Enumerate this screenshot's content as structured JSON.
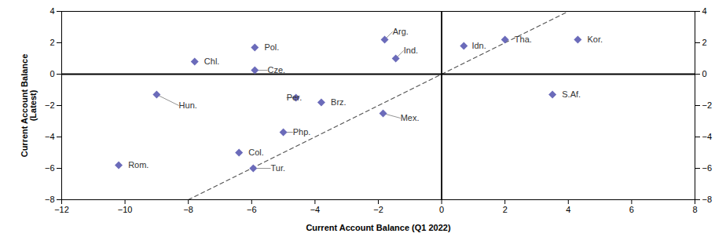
{
  "chart_data": {
    "type": "scatter",
    "xlabel": "Current Account Balance (Q1 2022)",
    "ylabel": "Current Account Balance\n(Latest)",
    "points": [
      {
        "label": "Rom.",
        "x": -10.2,
        "y": -5.8,
        "tx": -9.9,
        "ty": -5.8,
        "arrow": false
      },
      {
        "label": "Hun.",
        "x": -9.0,
        "y": -1.3,
        "tx": -8.3,
        "ty": -2.0,
        "arrow": true
      },
      {
        "label": "Chl.",
        "x": -7.8,
        "y": 0.8,
        "tx": -7.5,
        "ty": 0.8,
        "arrow": false
      },
      {
        "label": "Pol.",
        "x": -5.9,
        "y": 1.7,
        "tx": -5.6,
        "ty": 1.7,
        "arrow": false
      },
      {
        "label": "Cze.",
        "x": -5.9,
        "y": 0.25,
        "tx": -5.5,
        "ty": 0.25,
        "arrow": true
      },
      {
        "label": "Col.",
        "x": -6.4,
        "y": -5.0,
        "tx": -6.1,
        "ty": -5.0,
        "arrow": false
      },
      {
        "label": "Tur.",
        "x": -5.95,
        "y": -6.0,
        "tx": -5.4,
        "ty": -6.0,
        "arrow": true
      },
      {
        "label": "Php.",
        "x": -5.0,
        "y": -3.7,
        "tx": -4.7,
        "ty": -3.7,
        "arrow": true
      },
      {
        "label": "Per.",
        "x": -4.6,
        "y": -1.5,
        "tx": -4.9,
        "ty": -1.5,
        "arrow": true
      },
      {
        "label": "Brz.",
        "x": -3.8,
        "y": -1.8,
        "tx": -3.5,
        "ty": -1.8,
        "arrow": false
      },
      {
        "label": "Arg.",
        "x": -1.8,
        "y": 2.2,
        "tx": -1.55,
        "ty": 2.7,
        "arrow": true
      },
      {
        "label": "Ind.",
        "x": -1.45,
        "y": 1.0,
        "tx": -1.2,
        "ty": 1.5,
        "arrow": true
      },
      {
        "label": "Mex.",
        "x": -1.85,
        "y": -2.5,
        "tx": -1.3,
        "ty": -2.8,
        "arrow": true
      },
      {
        "label": "Idn.",
        "x": 0.7,
        "y": 1.8,
        "tx": 0.95,
        "ty": 1.8,
        "arrow": false
      },
      {
        "label": "Tha.",
        "x": 2.0,
        "y": 2.2,
        "tx": 2.3,
        "ty": 2.2,
        "arrow": false
      },
      {
        "label": "Kor.",
        "x": 4.3,
        "y": 2.2,
        "tx": 4.6,
        "ty": 2.2,
        "arrow": false
      },
      {
        "label": "S.Af.",
        "x": 3.5,
        "y": -1.3,
        "tx": 3.8,
        "ty": -1.3,
        "arrow": false
      }
    ],
    "color": "#6b6bba",
    "marker": "diamond",
    "reference_line": {
      "x": [
        -12,
        8
      ],
      "y": [
        -12,
        8
      ],
      "line_style": "dashed"
    },
    "xlim": [
      -12,
      8
    ],
    "ylim": [
      -8,
      4
    ],
    "xticks": [
      -12,
      -10,
      -8,
      -6,
      -4,
      -2,
      0,
      2,
      4,
      6,
      8
    ],
    "yticks": [
      -8,
      -6,
      -4,
      -2,
      0,
      2,
      4
    ],
    "grid": false
  }
}
